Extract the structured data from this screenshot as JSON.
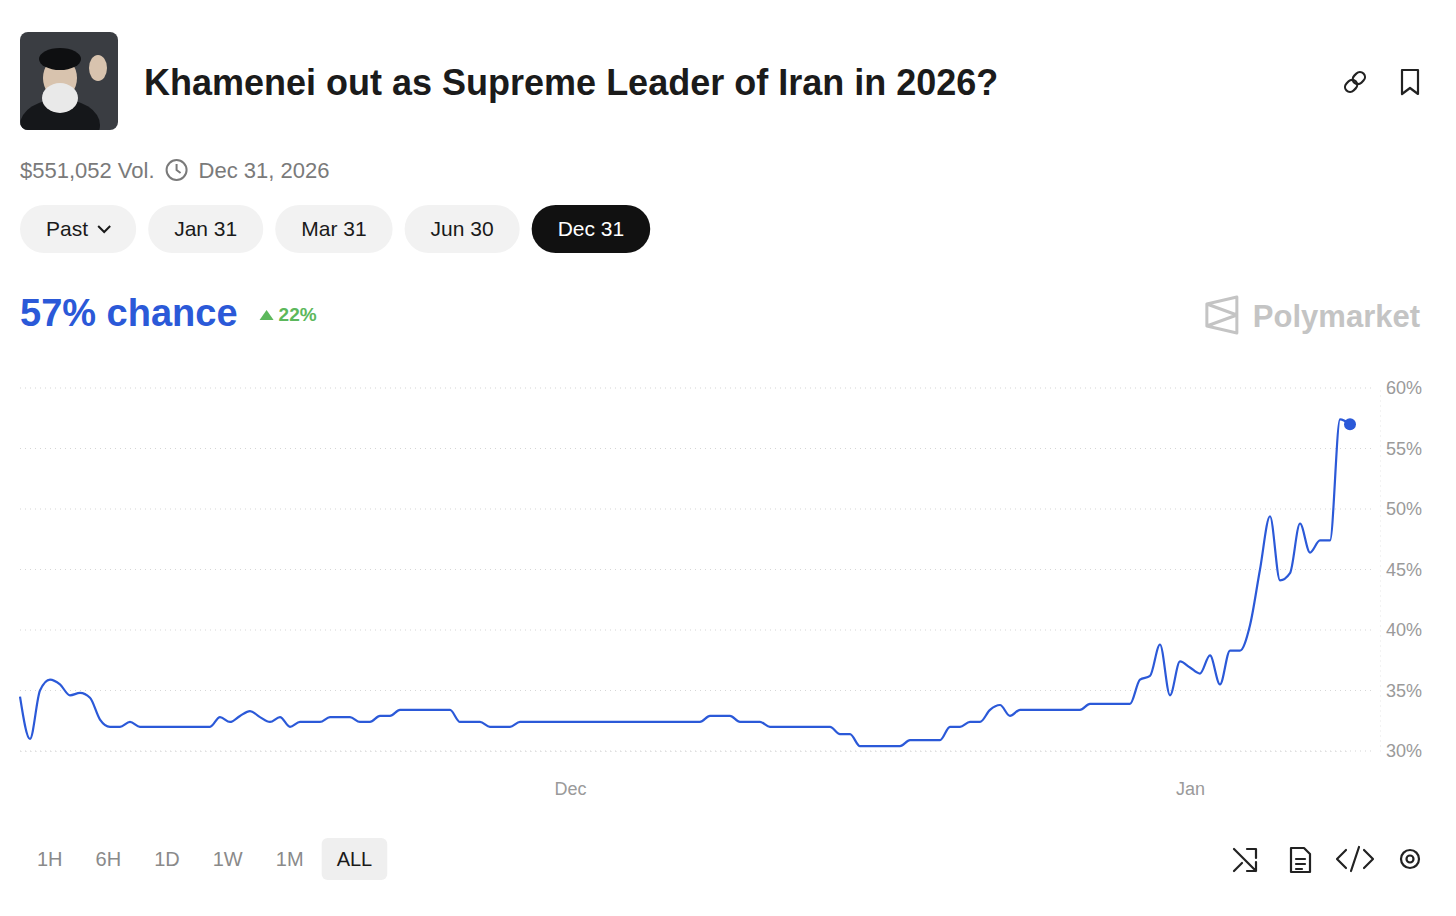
{
  "header": {
    "volume": "$551,052 Vol.",
    "end_date": "Dec 31, 2026",
    "headline": "57% chance",
    "change": "22%",
    "brand": "Polymarket"
  },
  "tabs": [
    {
      "label": "Past"
    },
    {
      "label": "Jan 31"
    },
    {
      "label": "Mar 31"
    },
    {
      "label": "Jun 30"
    },
    {
      "label": "Dec 31",
      "selected": true
    }
  ],
  "ranges": [
    {
      "label": "1H"
    },
    {
      "label": "6H"
    },
    {
      "label": "1D"
    },
    {
      "label": "1W"
    },
    {
      "label": "1M"
    },
    {
      "label": "ALL",
      "selected": true
    }
  ],
  "chart_data": {
    "type": "line",
    "title": "Khamenei out as Supreme Leader of Iran in 2026?",
    "categories": [
      null,
      null,
      null,
      null,
      null,
      null,
      null,
      null,
      null,
      null,
      null,
      null,
      null,
      null,
      null,
      null,
      null,
      null,
      null,
      null,
      null,
      null,
      null,
      null,
      null,
      null,
      null,
      null,
      null,
      null,
      null,
      null,
      null,
      null,
      null,
      null,
      null,
      null,
      null,
      null,
      null,
      null,
      null,
      null,
      null,
      null,
      null,
      null,
      null,
      null,
      null,
      null,
      null,
      null,
      null,
      "Dec",
      null,
      null,
      null,
      null,
      null,
      null,
      null,
      null,
      null,
      null,
      null,
      null,
      null,
      null,
      null,
      null,
      null,
      null,
      null,
      null,
      null,
      null,
      null,
      null,
      null,
      null,
      null,
      null,
      null,
      null,
      null,
      null,
      null,
      null,
      null,
      null,
      null,
      null,
      null,
      null,
      null,
      null,
      null,
      null,
      null,
      null,
      null,
      null,
      null,
      null,
      null,
      null,
      null,
      null,
      null,
      null,
      null,
      null,
      null,
      null,
      null,
      "Jan",
      null,
      null,
      null,
      null,
      null,
      null,
      null,
      null,
      null,
      null,
      null,
      null,
      null,
      null,
      null,
      null
    ],
    "series": [
      {
        "color": "#2b59d8",
        "marker": "end",
        "values": [
          34.5,
          31.0,
          35.0,
          35.9,
          35.5,
          34.6,
          34.8,
          34.4,
          32.6,
          32.0,
          32.0,
          32.4,
          32.0,
          32.0,
          32.0,
          32.0,
          32.0,
          32.0,
          32.0,
          32.0,
          32.8,
          32.4,
          32.9,
          33.3,
          32.8,
          32.4,
          32.8,
          32.0,
          32.4,
          32.4,
          32.4,
          32.8,
          32.8,
          32.8,
          32.4,
          32.4,
          32.9,
          32.9,
          33.4,
          33.4,
          33.4,
          33.4,
          33.4,
          33.4,
          32.4,
          32.4,
          32.4,
          32.0,
          32.0,
          32.0,
          32.4,
          32.4,
          32.4,
          32.4,
          32.4,
          32.4,
          32.4,
          32.4,
          32.4,
          32.4,
          32.4,
          32.4,
          32.4,
          32.4,
          32.4,
          32.4,
          32.4,
          32.4,
          32.4,
          32.9,
          32.9,
          32.9,
          32.4,
          32.4,
          32.4,
          32.0,
          32.0,
          32.0,
          32.0,
          32.0,
          32.0,
          32.0,
          31.4,
          31.4,
          30.4,
          30.4,
          30.4,
          30.4,
          30.4,
          30.9,
          30.9,
          30.9,
          30.9,
          32.0,
          32.0,
          32.4,
          32.4,
          33.4,
          33.8,
          32.9,
          33.4,
          33.4,
          33.4,
          33.4,
          33.4,
          33.4,
          33.4,
          33.9,
          33.9,
          33.9,
          33.9,
          33.9,
          35.9,
          36.2,
          38.8,
          34.6,
          37.4,
          36.9,
          36.4,
          37.9,
          35.5,
          38.3,
          38.3,
          40.4,
          45.0,
          49.4,
          44.1,
          44.7,
          48.8,
          46.4,
          47.4,
          47.4,
          57.4,
          57
        ]
      }
    ],
    "ylim": [
      30,
      60
    ],
    "yticks": [
      {
        "value": 30,
        "label": "30%"
      },
      {
        "value": 35,
        "label": "35%"
      },
      {
        "value": 40,
        "label": "40%"
      },
      {
        "value": 45,
        "label": "45%"
      },
      {
        "value": 50,
        "label": "50%"
      },
      {
        "value": 55,
        "label": "55%"
      },
      {
        "value": 60,
        "label": "60%"
      }
    ],
    "grid": true
  }
}
